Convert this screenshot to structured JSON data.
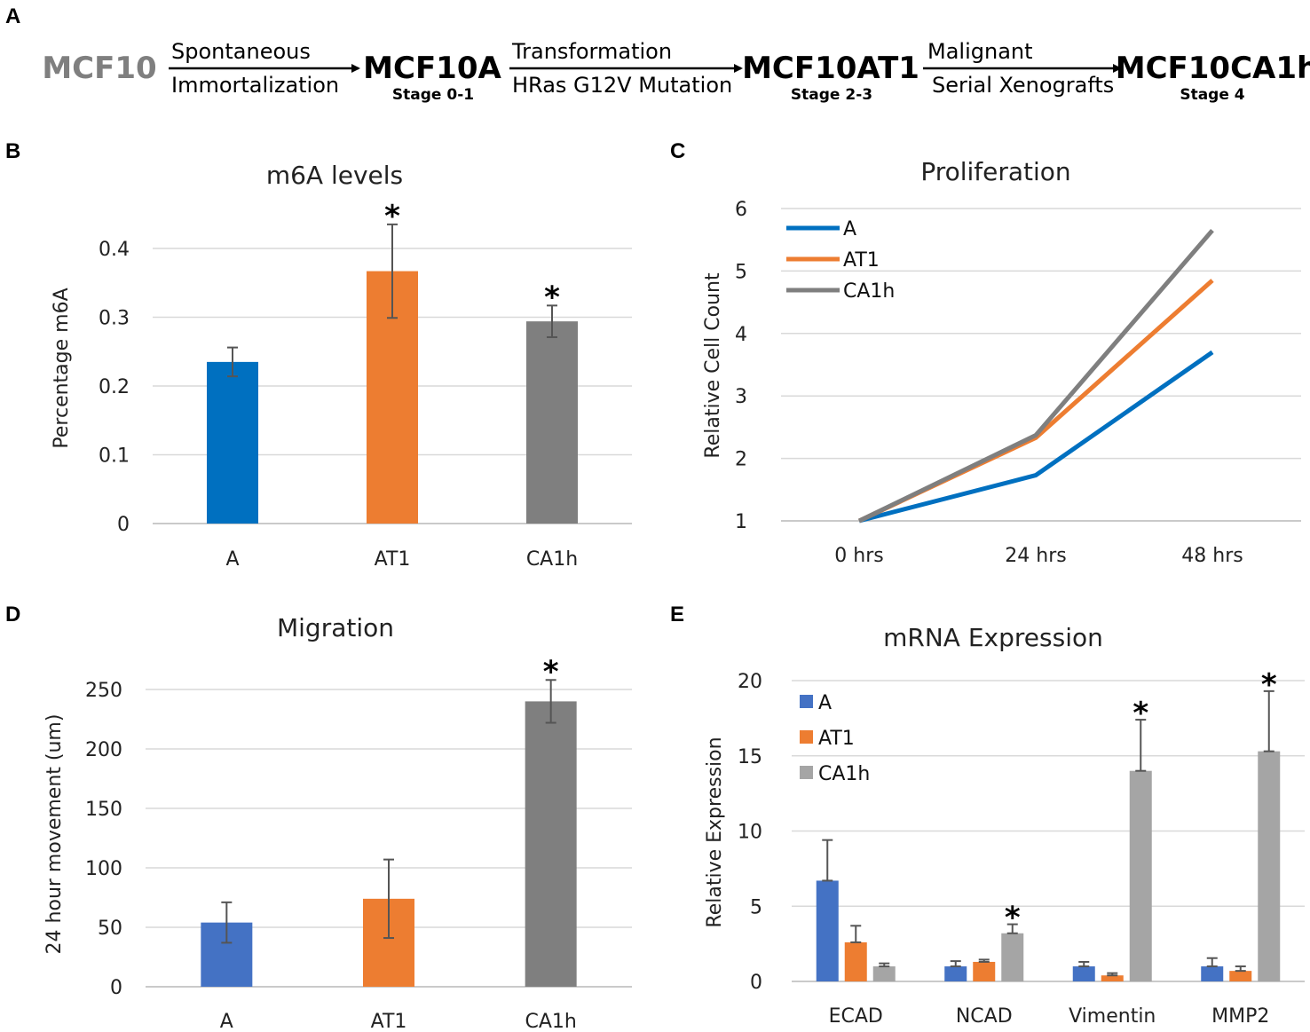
{
  "panel_a": {
    "letter": "A",
    "stages": [
      {
        "name": "MCF10",
        "sub": ""
      },
      {
        "name": "MCF10A",
        "sub": "Stage 0-1"
      },
      {
        "name": "MCF10AT1",
        "sub": "Stage 2-3"
      },
      {
        "name": "MCF10CA1h",
        "sub": "Stage 4"
      }
    ],
    "arrows": [
      {
        "top": "Spontaneous",
        "bottom": "Immortalization"
      },
      {
        "top": "Transformation",
        "bottom": "HRas G12V Mutation"
      },
      {
        "top": "Malignant",
        "bottom": "Serial Xenografts"
      }
    ],
    "colors": {
      "origin": "#7f7f7f",
      "stage": "#000000"
    }
  },
  "chart_data": [
    {
      "id": "B",
      "letter": "B",
      "type": "bar",
      "title": "m6A levels",
      "xlabel": "",
      "ylabel": "Percentage m6A",
      "categories": [
        "A",
        "AT1",
        "CA1h"
      ],
      "values": [
        0.235,
        0.367,
        0.294
      ],
      "errors": [
        0.021,
        0.068,
        0.023
      ],
      "significance": [
        "",
        "*",
        "*"
      ],
      "colors": [
        "#0070c0",
        "#ed7d31",
        "#7f7f7f"
      ],
      "ylim": [
        0,
        0.4
      ],
      "yticks": [
        0,
        0.1,
        0.2,
        0.3,
        0.4
      ],
      "ytick_labels": [
        "0",
        "0.1",
        "0.2",
        "0.3",
        "0.4"
      ],
      "grid": true
    },
    {
      "id": "C",
      "letter": "C",
      "type": "line",
      "title": "Proliferation",
      "xlabel": "",
      "ylabel": "Relative Cell Count",
      "categories": [
        "0 hrs",
        "24 hrs",
        "48 hrs"
      ],
      "series": [
        {
          "name": "A",
          "values": [
            1.0,
            1.73,
            3.7
          ],
          "color": "#0070c0"
        },
        {
          "name": "AT1",
          "values": [
            1.0,
            2.33,
            4.85
          ],
          "color": "#ed7d31"
        },
        {
          "name": "CA1h",
          "values": [
            1.0,
            2.37,
            5.65
          ],
          "color": "#7f7f7f"
        }
      ],
      "ylim": [
        1,
        6
      ],
      "yticks": [
        1,
        2,
        3,
        4,
        5,
        6
      ],
      "ytick_labels": [
        "1",
        "2",
        "3",
        "4",
        "5",
        "6"
      ],
      "legend": "top-left",
      "grid": true
    },
    {
      "id": "D",
      "letter": "D",
      "type": "bar",
      "title": "Migration",
      "xlabel": "",
      "ylabel": "24 hour movement (um)",
      "categories": [
        "A",
        "AT1",
        "CA1h"
      ],
      "values": [
        54,
        74,
        240
      ],
      "errors": [
        17,
        33,
        18
      ],
      "significance": [
        "",
        "",
        "*"
      ],
      "colors": [
        "#4472c4",
        "#ed7d31",
        "#7f7f7f"
      ],
      "ylim": [
        0,
        250
      ],
      "yticks": [
        0,
        50,
        100,
        150,
        200,
        250
      ],
      "ytick_labels": [
        "0",
        "50",
        "100",
        "150",
        "200",
        "250"
      ],
      "grid": true
    },
    {
      "id": "E",
      "letter": "E",
      "type": "bar",
      "title": "mRNA Expression",
      "xlabel": "",
      "ylabel": "Relative Expression",
      "categories": [
        "ECAD",
        "NCAD",
        "Vimentin",
        "MMP2"
      ],
      "series": [
        {
          "name": "A",
          "values": [
            6.7,
            1.0,
            1.0,
            1.0
          ],
          "errors": [
            2.7,
            0.35,
            0.3,
            0.55
          ],
          "color": "#4472c4"
        },
        {
          "name": "AT1",
          "values": [
            2.6,
            1.3,
            0.4,
            0.7
          ],
          "errors": [
            1.1,
            0.15,
            0.15,
            0.3
          ],
          "color": "#ed7d31"
        },
        {
          "name": "CA1h",
          "values": [
            1.0,
            3.2,
            14.0,
            15.3
          ],
          "errors": [
            0.2,
            0.6,
            3.4,
            4.0
          ],
          "color": "#a5a5a5"
        }
      ],
      "significance": [
        [
          "",
          "",
          ""
        ],
        [
          "",
          "",
          "*"
        ],
        [
          "",
          "",
          "*"
        ],
        [
          "",
          "",
          "*"
        ]
      ],
      "ylim": [
        0,
        20
      ],
      "yticks": [
        0,
        5,
        10,
        15,
        20
      ],
      "ytick_labels": [
        "0",
        "5",
        "10",
        "15",
        "20"
      ],
      "legend": "top-left",
      "grid": true
    }
  ]
}
